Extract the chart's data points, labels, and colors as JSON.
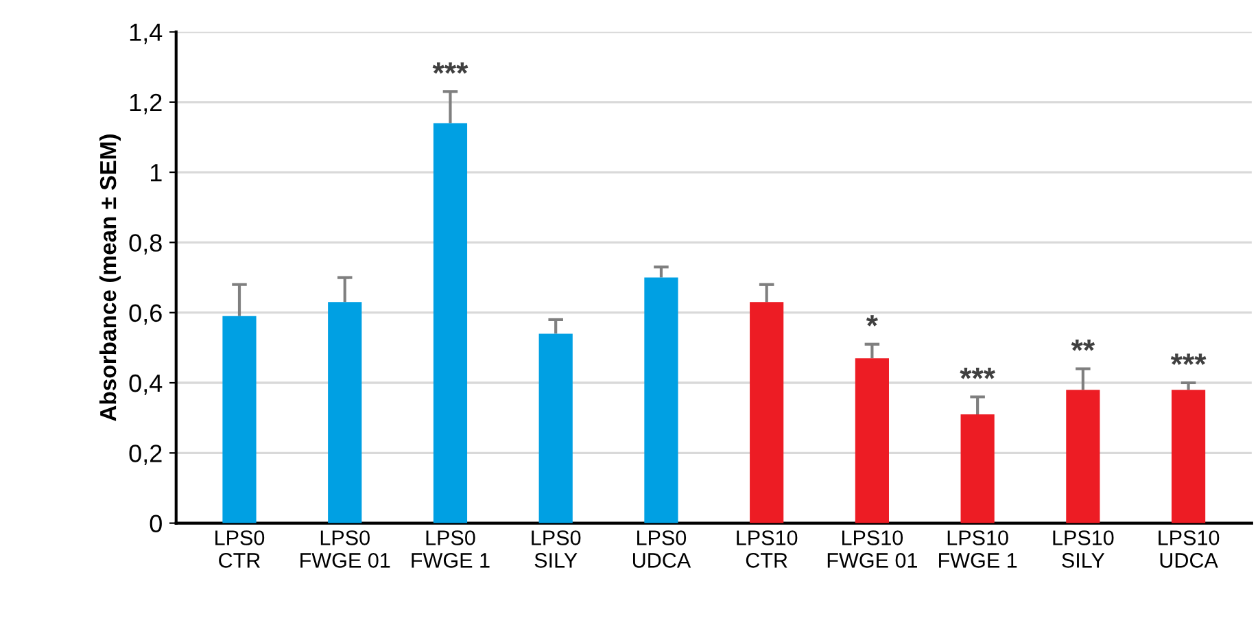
{
  "chart_data": {
    "type": "bar",
    "ylabel": "Absorbance (mean ± SEM)",
    "categories": [
      "LPS0\nCTR",
      "LPS0\nFWGE 01",
      "LPS0\nFWGE 1",
      "LPS0\nSILY",
      "LPS0\nUDCA",
      "LPS10\nCTR",
      "LPS10\nFWGE 01",
      "LPS10\nFWGE 1",
      "LPS10\nSILY",
      "LPS10\nUDCA"
    ],
    "values": [
      0.59,
      0.63,
      1.14,
      0.54,
      0.7,
      0.63,
      0.47,
      0.31,
      0.38,
      0.38
    ],
    "errors": [
      [
        0.59,
        0.68
      ],
      [
        0.63,
        0.7
      ],
      [
        1.14,
        1.23
      ],
      [
        0.54,
        0.58
      ],
      [
        0.7,
        0.73
      ],
      [
        0.63,
        0.68
      ],
      [
        0.47,
        0.51
      ],
      [
        0.31,
        0.36
      ],
      [
        0.38,
        0.44
      ],
      [
        0.38,
        0.4
      ]
    ],
    "colors": [
      "#00a0e3",
      "#00a0e3",
      "#00a0e3",
      "#00a0e3",
      "#00a0e3",
      "#ed1c24",
      "#ed1c24",
      "#ed1c24",
      "#ed1c24",
      "#ed1c24"
    ],
    "ylim": [
      0,
      1.4
    ],
    "yticks": [
      0,
      {
        "value": 0.2,
        "label": "0,2"
      },
      {
        "value": 0.4,
        "label": "0,4"
      },
      {
        "value": 0.6,
        "label": "0,6"
      },
      {
        "value": 0.8,
        "label": "0,8"
      },
      1,
      {
        "value": 1.2,
        "label": "1,2"
      },
      {
        "value": 1.4,
        "label": "1,4"
      }
    ],
    "grid": "y",
    "annotations": [
      {
        "text": "***",
        "x": "LPS0\nFWGE 1",
        "y": 1.23
      },
      {
        "text": "*",
        "x": "LPS10\nFWGE 01",
        "y": 0.51
      },
      {
        "text": "***",
        "x": "LPS10\nFWGE 1",
        "y": 0.36
      },
      {
        "text": "**",
        "x": "LPS10\nSILY",
        "y": 0.44
      },
      {
        "text": "***",
        "x": "LPS10\nUDCA",
        "y": 0.4
      }
    ]
  }
}
